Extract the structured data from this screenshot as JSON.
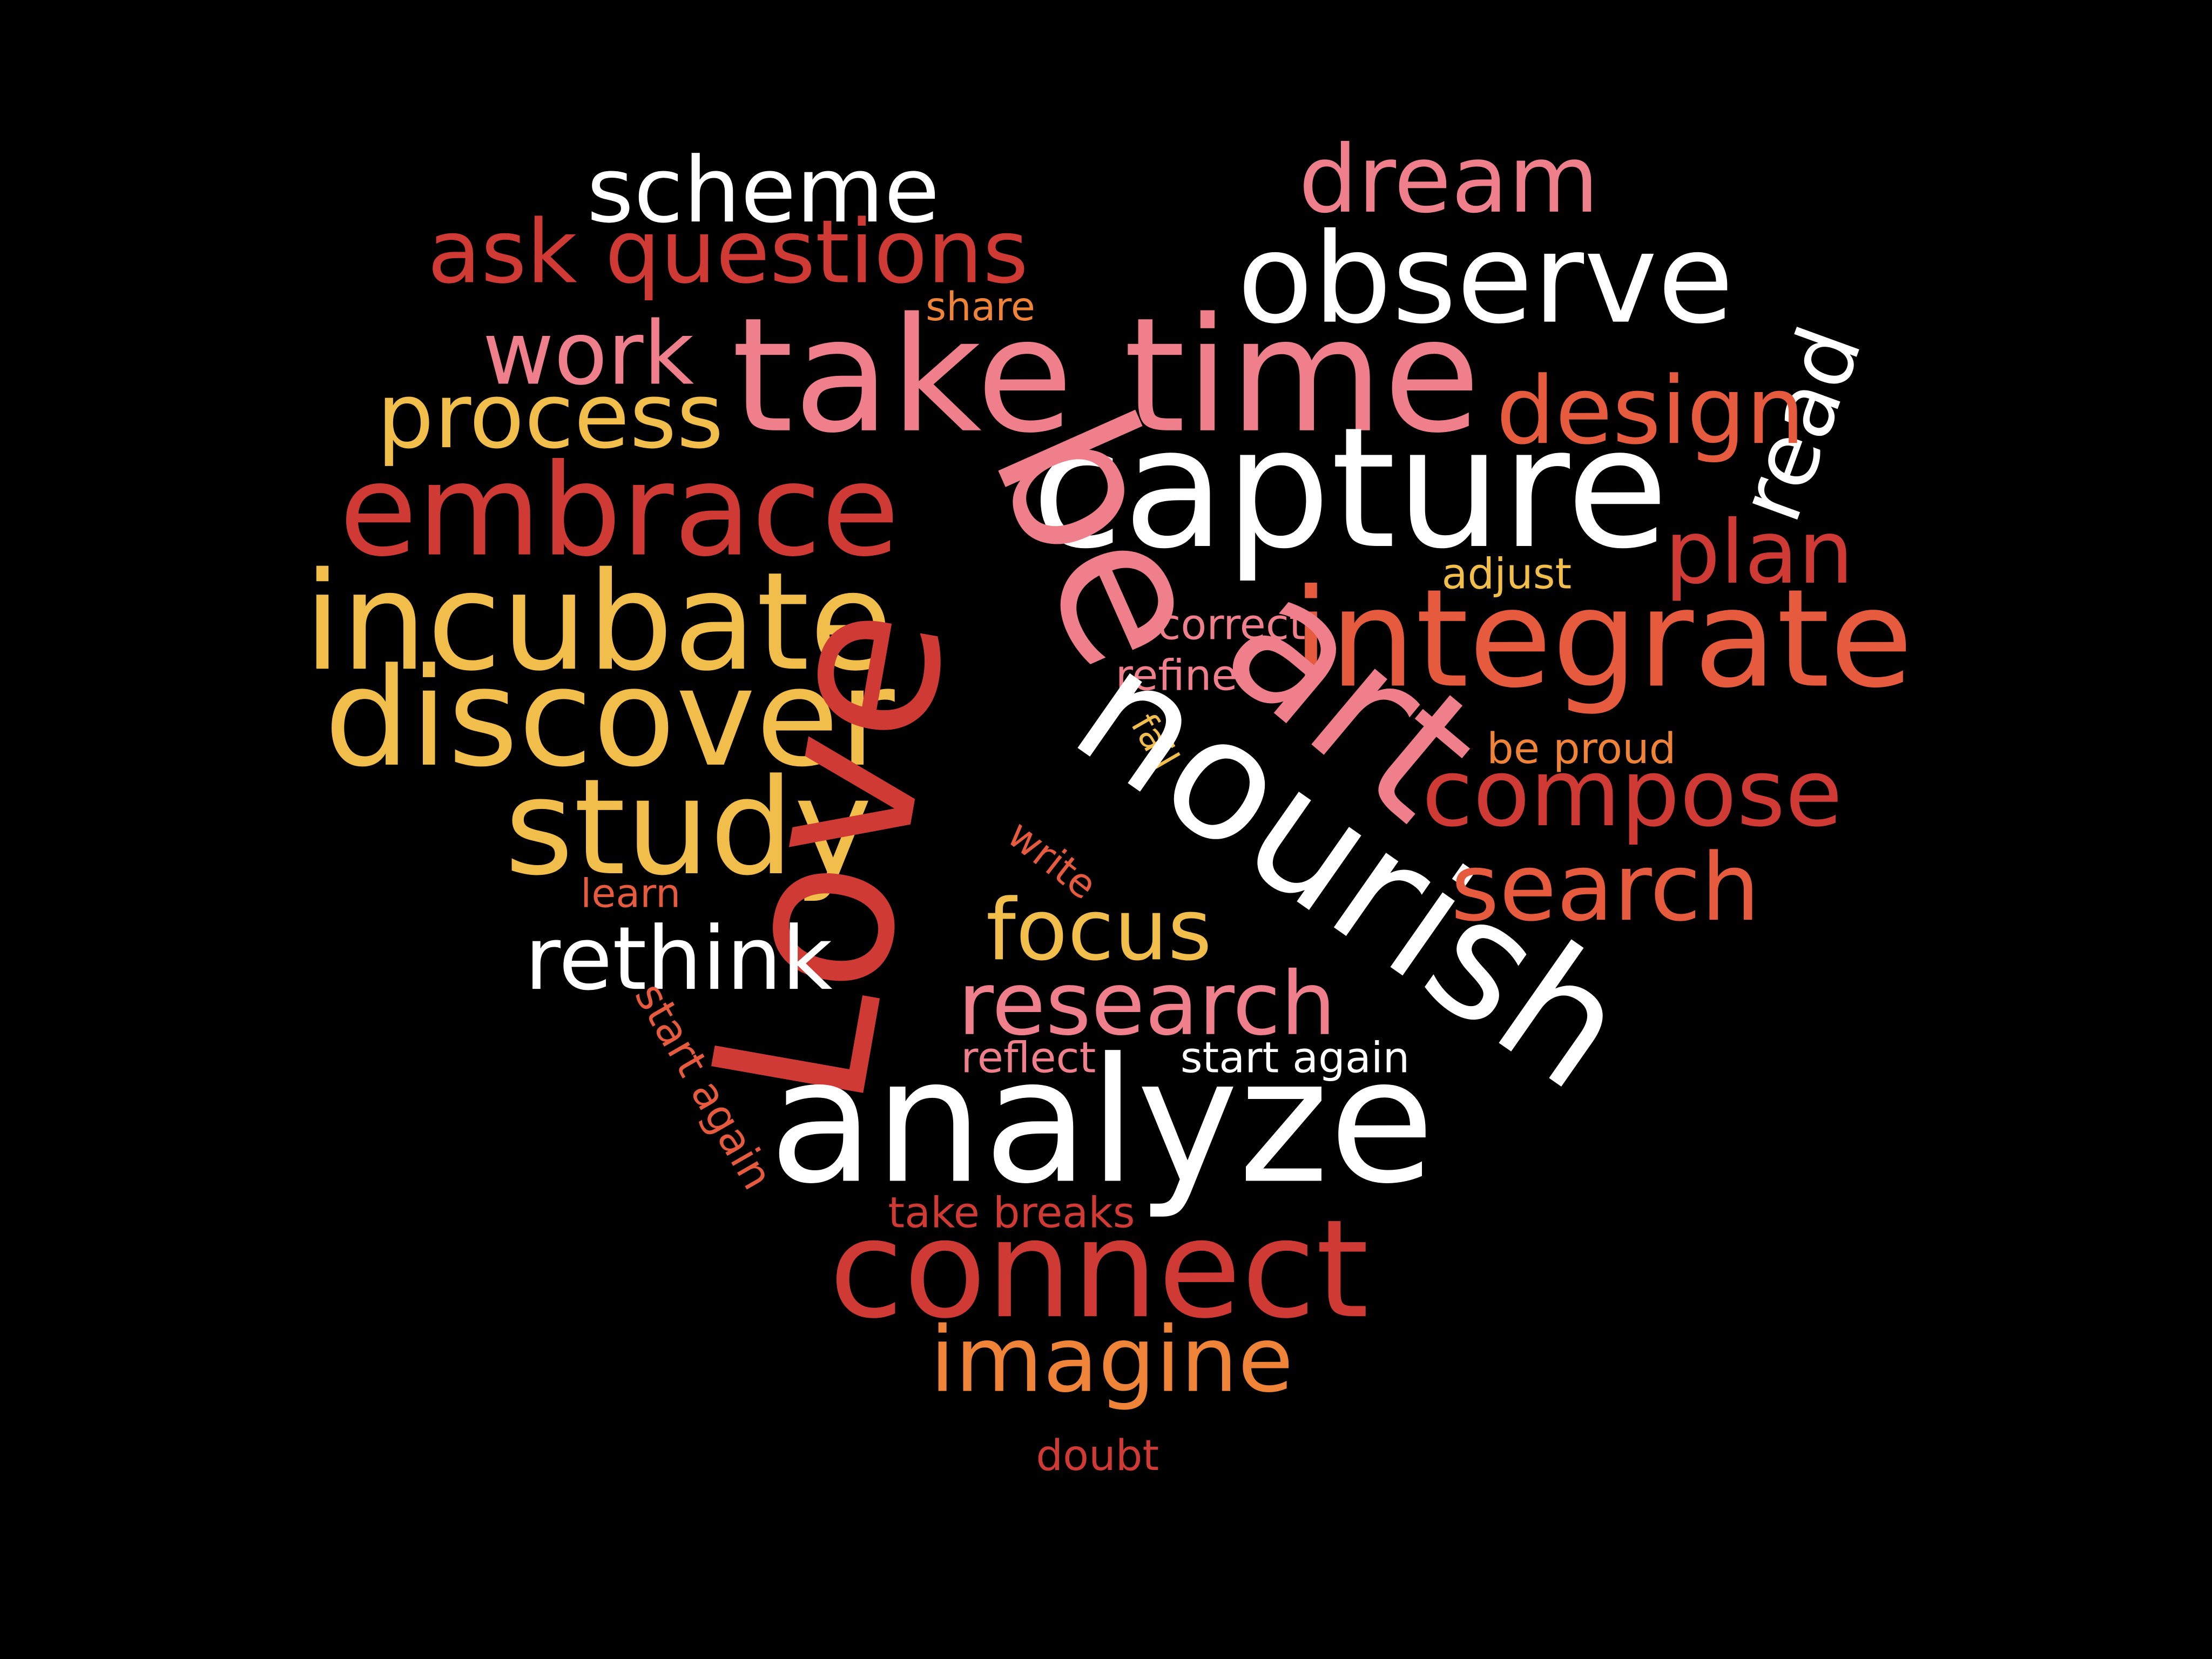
{
  "palette": {
    "background": "#000000",
    "white": "#ffffff",
    "pink": "#ef7f8b",
    "red": "#d03a35",
    "orange_red": "#e65a3e",
    "orange": "#ef8438",
    "yellow": "#f1bd4b"
  },
  "words": [
    {
      "id": "scheme",
      "text": "scheme",
      "color": "#ffffff"
    },
    {
      "id": "dream",
      "text": "dream",
      "color": "#ef7f8b"
    },
    {
      "id": "ask-questions",
      "text": "ask questions",
      "color": "#d03a35"
    },
    {
      "id": "observe",
      "text": "observe",
      "color": "#ffffff"
    },
    {
      "id": "share",
      "text": "share",
      "color": "#ef8438"
    },
    {
      "id": "work",
      "text": "work",
      "color": "#ef7f8b"
    },
    {
      "id": "take-time",
      "text": "take time",
      "color": "#ef7f8b"
    },
    {
      "id": "read",
      "text": "read",
      "color": "#ffffff"
    },
    {
      "id": "process",
      "text": "process",
      "color": "#f1bd4b"
    },
    {
      "id": "design",
      "text": "design",
      "color": "#e65a3e"
    },
    {
      "id": "capture",
      "text": "capture",
      "color": "#ffffff"
    },
    {
      "id": "embrace",
      "text": "embrace",
      "color": "#d03a35"
    },
    {
      "id": "plan",
      "text": "plan",
      "color": "#d03a35"
    },
    {
      "id": "adjust",
      "text": "adjust",
      "color": "#f1bd4b"
    },
    {
      "id": "be",
      "text": "be",
      "color": "#ef7f8b"
    },
    {
      "id": "incubate",
      "text": "incubate",
      "color": "#f1bd4b"
    },
    {
      "id": "correct",
      "text": "correct",
      "color": "#ef7f8b"
    },
    {
      "id": "integrate",
      "text": "integrate",
      "color": "#e65a3e"
    },
    {
      "id": "refine",
      "text": "refine",
      "color": "#ef7f8b"
    },
    {
      "id": "discover",
      "text": "discover",
      "color": "#f1bd4b"
    },
    {
      "id": "art",
      "text": "art",
      "color": "#ef7f8b"
    },
    {
      "id": "fail",
      "text": "fail",
      "color": "#f1bd4b"
    },
    {
      "id": "be-proud",
      "text": "be proud",
      "color": "#ef8438"
    },
    {
      "id": "compose",
      "text": "compose",
      "color": "#d03a35"
    },
    {
      "id": "study",
      "text": "study",
      "color": "#f1bd4b"
    },
    {
      "id": "nourish",
      "text": "nourish",
      "color": "#ffffff"
    },
    {
      "id": "write",
      "text": "write",
      "color": "#e65a3e"
    },
    {
      "id": "search",
      "text": "search",
      "color": "#e65a3e"
    },
    {
      "id": "learn",
      "text": "learn",
      "color": "#e65a3e"
    },
    {
      "id": "love",
      "text": "Love",
      "color": "#d03a35"
    },
    {
      "id": "focus",
      "text": "focus",
      "color": "#f1bd4b"
    },
    {
      "id": "rethink",
      "text": "rethink",
      "color": "#ffffff"
    },
    {
      "id": "research",
      "text": "research",
      "color": "#ef7f8b"
    },
    {
      "id": "start-again-rotated",
      "text": "start again",
      "color": "#e65a3e"
    },
    {
      "id": "reflect",
      "text": "reflect",
      "color": "#ef7f8b"
    },
    {
      "id": "start-again",
      "text": "start again",
      "color": "#ffffff"
    },
    {
      "id": "analyze",
      "text": "analyze",
      "color": "#ffffff"
    },
    {
      "id": "take-breaks",
      "text": "take breaks",
      "color": "#d03a35"
    },
    {
      "id": "connect",
      "text": "connect",
      "color": "#d03a35"
    },
    {
      "id": "imagine",
      "text": "imagine",
      "color": "#ef8438"
    },
    {
      "id": "doubt",
      "text": "doubt",
      "color": "#d03a35"
    }
  ]
}
